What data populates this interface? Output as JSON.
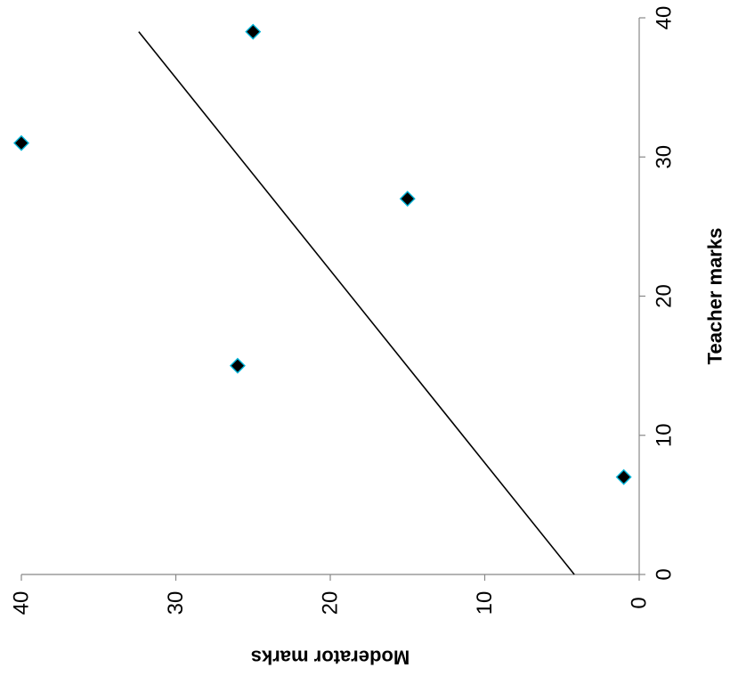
{
  "chart_data": {
    "type": "scatter",
    "xlabel": "Teacher marks",
    "ylabel": "Moderator marks",
    "xlim": [
      0,
      40
    ],
    "ylim": [
      0,
      40
    ],
    "x_ticks": [
      "0",
      "10",
      "20",
      "30",
      "40"
    ],
    "y_ticks": [
      "0",
      "10",
      "20",
      "30",
      "40"
    ],
    "orientation": "rotated 90 degrees clockwise (teacher marks axis runs vertically on the right, moderator marks axis runs horizontally along the bottom, increasing to the left)",
    "grid": false,
    "legend": "none",
    "points": [
      {
        "x": 7,
        "y": 1
      },
      {
        "x": 15,
        "y": 26
      },
      {
        "x": 27,
        "y": 15
      },
      {
        "x": 31,
        "y": 40
      },
      {
        "x": 39,
        "y": 25
      }
    ],
    "trendline": {
      "x": [
        0,
        39
      ],
      "y": [
        4.2,
        32.4
      ]
    },
    "colors": {
      "marker_fill": "#000000",
      "marker_edge": "#00b4d8",
      "trendline": "#000000",
      "axis": "#888888"
    }
  }
}
